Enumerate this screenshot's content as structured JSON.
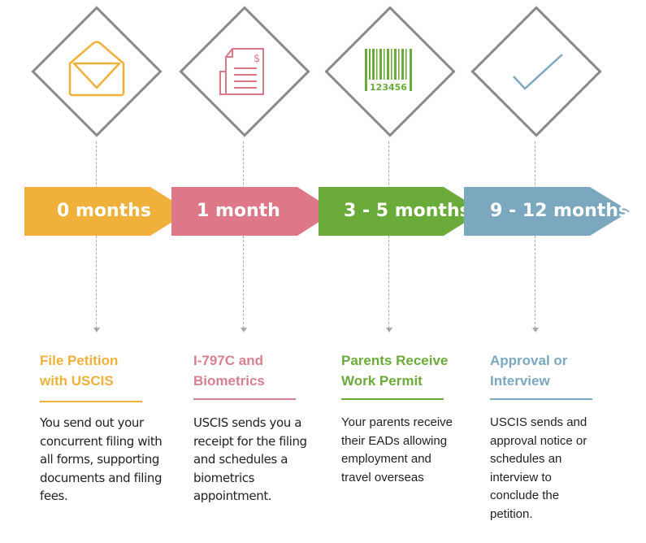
{
  "colors": {
    "orange": "#f0b13a",
    "pink": "#de7888",
    "green": "#6aab3a",
    "blue": "#7ba8bf",
    "gray": "#8a8a8a"
  },
  "steps": [
    {
      "icon": "envelope-icon",
      "time": "0 months",
      "title": [
        "File Petition",
        "with USCIS"
      ],
      "body": [
        "You send out your",
        "concurrent filing with",
        "all forms, supporting",
        "documents and filing",
        "fees."
      ]
    },
    {
      "icon": "invoice-icon",
      "icon_text": "$",
      "time": "1 month",
      "title": [
        "I-797C and",
        "Biometrics"
      ],
      "body": [
        "USCIS sends you a",
        "receipt for the filing",
        "and schedules a",
        "biometrics",
        "appointment."
      ]
    },
    {
      "icon": "barcode-icon",
      "icon_text": "123456",
      "time": "3 - 5 months",
      "title": [
        "Parents Receive",
        "Work Permit"
      ],
      "body": [
        "Your parents receive",
        "their EADs allowing",
        "employment and",
        "travel overseas"
      ]
    },
    {
      "icon": "checkmark-icon",
      "time": "9 - 12 months",
      "title": [
        "Approval or",
        "Interview"
      ],
      "body": [
        "USCIS sends and",
        "approval notice or",
        "schedules an",
        "interview to",
        "conclude the",
        "petition."
      ]
    }
  ]
}
